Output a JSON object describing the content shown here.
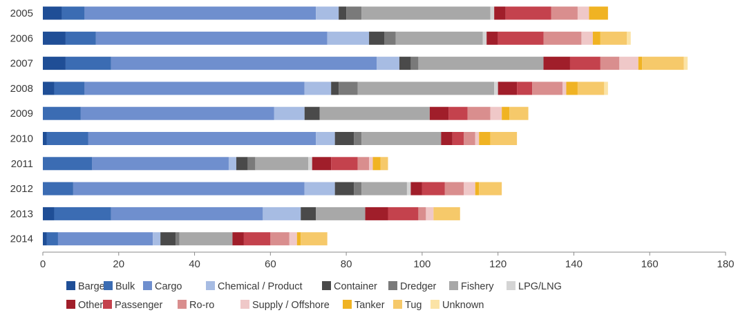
{
  "chart_data": {
    "type": "bar",
    "orientation": "horizontal",
    "stacked": true,
    "title": "",
    "xlabel": "",
    "ylabel": "",
    "xlim": [
      0,
      180
    ],
    "x_ticks": [
      0,
      20,
      40,
      60,
      80,
      100,
      120,
      140,
      160,
      180
    ],
    "grid": false,
    "legend_position": "bottom",
    "categories": [
      "2005",
      "2006",
      "2007",
      "2008",
      "2009",
      "2010",
      "2011",
      "2012",
      "2013",
      "2014"
    ],
    "series": [
      {
        "name": "Barge",
        "color": "#1f4e96",
        "values": [
          5,
          6,
          6,
          3,
          0,
          1,
          0,
          0,
          3,
          1
        ]
      },
      {
        "name": "Bulk",
        "color": "#3b6cb3",
        "values": [
          6,
          8,
          12,
          8,
          10,
          11,
          13,
          8,
          15,
          3
        ]
      },
      {
        "name": "Cargo",
        "color": "#6f8fce",
        "values": [
          61,
          61,
          70,
          58,
          51,
          60,
          36,
          61,
          40,
          25
        ]
      },
      {
        "name": "Chemical / Product",
        "color": "#a7bce3",
        "values": [
          6,
          11,
          6,
          7,
          8,
          5,
          2,
          8,
          10,
          2
        ]
      },
      {
        "name": "Container",
        "color": "#4a4a4a",
        "values": [
          2,
          4,
          3,
          2,
          4,
          5,
          3,
          5,
          4,
          4
        ]
      },
      {
        "name": "Dredger",
        "color": "#7a7a7a",
        "values": [
          4,
          3,
          2,
          5,
          0,
          2,
          2,
          2,
          0,
          1
        ]
      },
      {
        "name": "Fishery",
        "color": "#a8a8a8",
        "values": [
          34,
          23,
          33,
          36,
          29,
          21,
          14,
          12,
          13,
          14
        ]
      },
      {
        "name": "LPG/LNG",
        "color": "#d4d4d4",
        "values": [
          1,
          1,
          0,
          1,
          0,
          0,
          1,
          1,
          0,
          0
        ]
      },
      {
        "name": "Other",
        "color": "#a01e2a",
        "values": [
          3,
          3,
          7,
          5,
          5,
          3,
          5,
          3,
          6,
          3
        ]
      },
      {
        "name": "Passenger",
        "color": "#c4424d",
        "values": [
          12,
          12,
          8,
          4,
          5,
          3,
          7,
          6,
          8,
          7
        ]
      },
      {
        "name": "Ro-ro",
        "color": "#d98e8e",
        "values": [
          7,
          10,
          5,
          8,
          6,
          3,
          3,
          5,
          2,
          5
        ]
      },
      {
        "name": "Supply / Offshore",
        "color": "#efc8c8",
        "values": [
          3,
          3,
          5,
          1,
          3,
          1,
          1,
          3,
          2,
          2
        ]
      },
      {
        "name": "Tanker",
        "color": "#f0b323",
        "values": [
          5,
          2,
          1,
          3,
          2,
          3,
          2,
          1,
          0,
          1
        ]
      },
      {
        "name": "Tug",
        "color": "#f6c96a",
        "values": [
          0,
          7,
          11,
          7,
          5,
          7,
          2,
          6,
          7,
          7
        ]
      },
      {
        "name": "Unknown",
        "color": "#fbe3a6",
        "values": [
          0,
          1,
          1,
          1,
          0,
          0,
          0,
          0,
          0,
          0
        ]
      }
    ]
  }
}
